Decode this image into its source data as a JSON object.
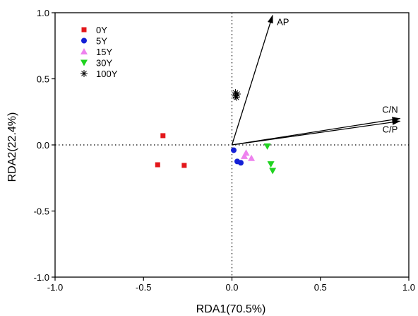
{
  "chart_data": {
    "type": "scatter",
    "xlabel": "RDA1(70.5%)",
    "ylabel": "RDA2(22.4%)",
    "xlim": [
      -1.0,
      1.0
    ],
    "ylim": [
      -1.0,
      1.0
    ],
    "xticks": [
      -1.0,
      -0.5,
      0.0,
      0.5,
      1.0
    ],
    "yticks": [
      -1.0,
      -0.5,
      0.0,
      0.5,
      1.0
    ],
    "xtick_labels": [
      "-1.0",
      "-0.5",
      "0.0",
      "0.5",
      "1.0"
    ],
    "ytick_labels": [
      "-1.0",
      "-0.5",
      "0.0",
      "0.5",
      "1.0"
    ],
    "reference_lines": {
      "x": 0,
      "y": 0,
      "style": "dotted"
    },
    "legend_position": "top-left",
    "series": [
      {
        "name": "0Y",
        "marker": "square",
        "color": "#e3171b",
        "points": [
          [
            -0.39,
            0.07
          ],
          [
            -0.42,
            -0.15
          ],
          [
            -0.27,
            -0.155
          ]
        ]
      },
      {
        "name": "5Y",
        "marker": "circle",
        "color": "#1420d6",
        "points": [
          [
            0.01,
            -0.04
          ],
          [
            0.03,
            -0.125
          ],
          [
            0.05,
            -0.135
          ]
        ]
      },
      {
        "name": "15Y",
        "marker": "triangle-up",
        "color": "#ee82ee",
        "points": [
          [
            0.08,
            -0.06
          ],
          [
            0.07,
            -0.085
          ],
          [
            0.11,
            -0.1
          ]
        ]
      },
      {
        "name": "30Y",
        "marker": "triangle-down",
        "color": "#1fd31f",
        "points": [
          [
            0.2,
            -0.01
          ],
          [
            0.22,
            -0.145
          ],
          [
            0.23,
            -0.195
          ]
        ]
      },
      {
        "name": "100Y",
        "marker": "asterisk",
        "color": "#000000",
        "points": [
          [
            0.02,
            0.395
          ],
          [
            0.03,
            0.385
          ],
          [
            0.02,
            0.37
          ],
          [
            0.025,
            0.36
          ]
        ]
      }
    ],
    "arrows": [
      {
        "label": "AP",
        "x": 0.23,
        "y": 0.98
      },
      {
        "label": "C/N",
        "x": 0.95,
        "y": 0.2
      },
      {
        "label": "C/P",
        "x": 0.95,
        "y": 0.18
      }
    ]
  }
}
